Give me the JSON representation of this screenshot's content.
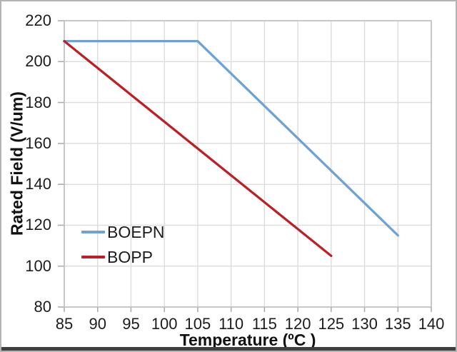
{
  "frame": {
    "background": "#ffffff",
    "border_color": "#b3b3b3",
    "bottom_bar_color": "#3f3f3f"
  },
  "chart_data": {
    "type": "line",
    "title": "",
    "xlabel": "Temperature (ºC )",
    "ylabel": "Rated Field (V/um)",
    "xlim": [
      85,
      140
    ],
    "ylim": [
      80,
      220
    ],
    "x_ticks": [
      85,
      90,
      95,
      100,
      105,
      110,
      115,
      120,
      125,
      130,
      135,
      140
    ],
    "y_ticks": [
      220,
      200,
      180,
      160,
      140,
      120,
      100,
      80
    ],
    "grid": true,
    "legend": {
      "position": "inside lower-left",
      "entries": [
        "BOEPN",
        "BOPP"
      ]
    },
    "series": [
      {
        "name": "BOEPN",
        "color": "#6FA2D2",
        "points": [
          [
            85,
            210
          ],
          [
            105,
            210
          ],
          [
            135,
            115
          ]
        ]
      },
      {
        "name": "BOPP",
        "color": "#BC2027",
        "points": [
          [
            85,
            210
          ],
          [
            125,
            105
          ]
        ]
      }
    ],
    "style": {
      "grid_color": "#DCDCDC",
      "plot_border_color": "#BEBEBE",
      "tick_color": "#A8A8A8",
      "text_color": "#1c1c1c",
      "line_width": 3.3
    }
  }
}
